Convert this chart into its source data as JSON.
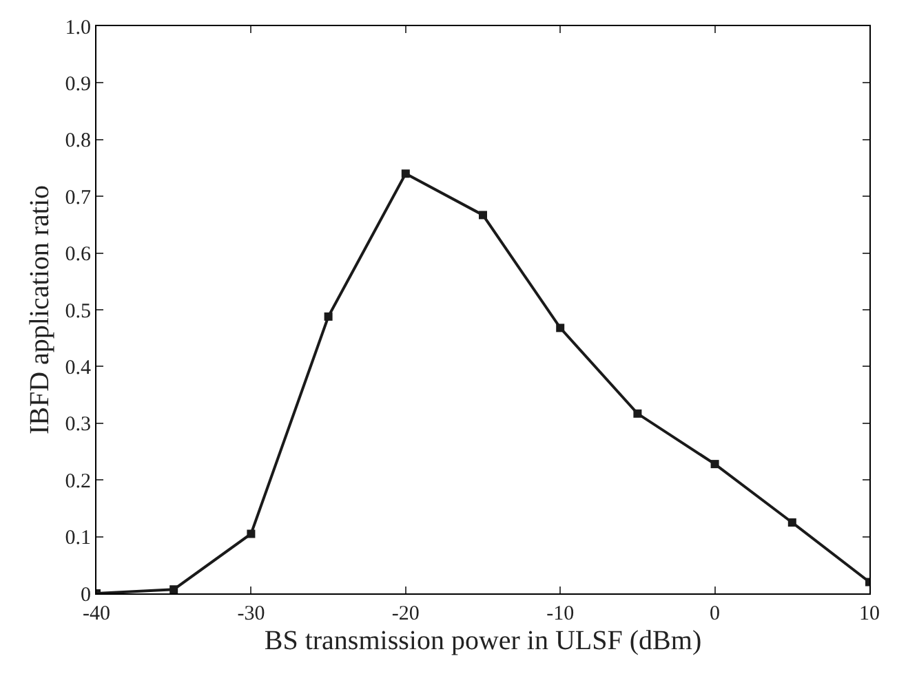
{
  "chart_data": {
    "type": "line",
    "xlabel": "BS transmission power in ULSF (dBm)",
    "ylabel": "IBFD application ratio",
    "x": [
      -40,
      -35,
      -30,
      -25,
      -20,
      -15,
      -10,
      -5,
      0,
      5,
      10
    ],
    "series": [
      {
        "color": "#1a1a1a",
        "values": [
          0,
          0.007,
          0.105,
          0.488,
          0.74,
          0.667,
          0.468,
          0.317,
          0.228,
          0.125,
          0.02
        ]
      }
    ],
    "xlim": [
      -40,
      10
    ],
    "xticks": [
      -40,
      -30,
      -20,
      -10,
      0,
      10
    ],
    "ylim": [
      0,
      1
    ],
    "yticks": [
      0,
      0.1,
      0.2,
      0.3,
      0.4,
      0.5,
      0.6,
      0.7,
      0.8,
      0.9,
      {
        "value": 1,
        "label": "1.0"
      }
    ],
    "grid": false,
    "legend": false,
    "marker": "square",
    "line_style": "solid"
  }
}
